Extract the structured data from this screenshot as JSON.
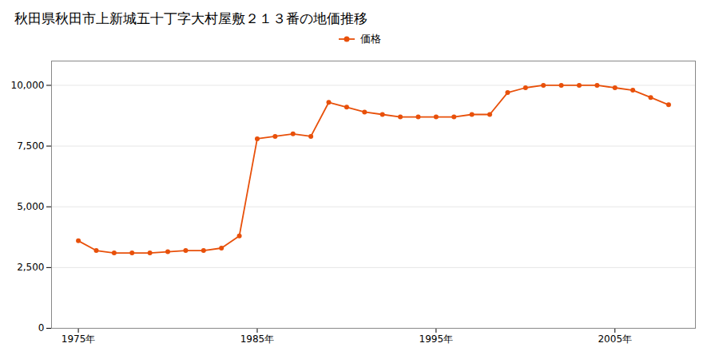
{
  "chart_data": {
    "type": "line",
    "title": "秋田県秋田市上新城五十丁字大村屋敷２１３番の地価推移",
    "x": [
      1975,
      1976,
      1977,
      1978,
      1979,
      1980,
      1981,
      1982,
      1983,
      1984,
      1985,
      1986,
      1987,
      1988,
      1989,
      1990,
      1991,
      1992,
      1993,
      1994,
      1995,
      1996,
      1997,
      1998,
      1999,
      2000,
      2001,
      2002,
      2003,
      2004,
      2005,
      2006,
      2007,
      2008
    ],
    "series": [
      {
        "name": "価格",
        "color": "#E8500A",
        "marker": "circle",
        "line_style": "solid",
        "values": [
          3600,
          3200,
          3100,
          3100,
          3100,
          3150,
          3200,
          3200,
          3300,
          3800,
          7800,
          7900,
          8000,
          7900,
          9300,
          9100,
          8900,
          8800,
          8700,
          8700,
          8700,
          8700,
          8800,
          8800,
          9700,
          9900,
          10000,
          10000,
          10000,
          10000,
          9900,
          9800,
          9500,
          9200
        ]
      }
    ],
    "xlim": [
      1973.5,
      2009.5
    ],
    "xticks": [
      {
        "value": 1975,
        "label": "1975年"
      },
      {
        "value": 1985,
        "label": "1985年"
      },
      {
        "value": 1995,
        "label": "1995年"
      },
      {
        "value": 2005,
        "label": "2005年"
      }
    ],
    "ylim": [
      0,
      11000
    ],
    "yticks": [
      0,
      {
        "value": 2500,
        "label": "2,500"
      },
      {
        "value": 5000,
        "label": "5,000"
      },
      {
        "value": 7500,
        "label": "7,500"
      },
      {
        "value": 10000,
        "label": "10,000"
      }
    ],
    "grid": "y",
    "legend": "top"
  }
}
